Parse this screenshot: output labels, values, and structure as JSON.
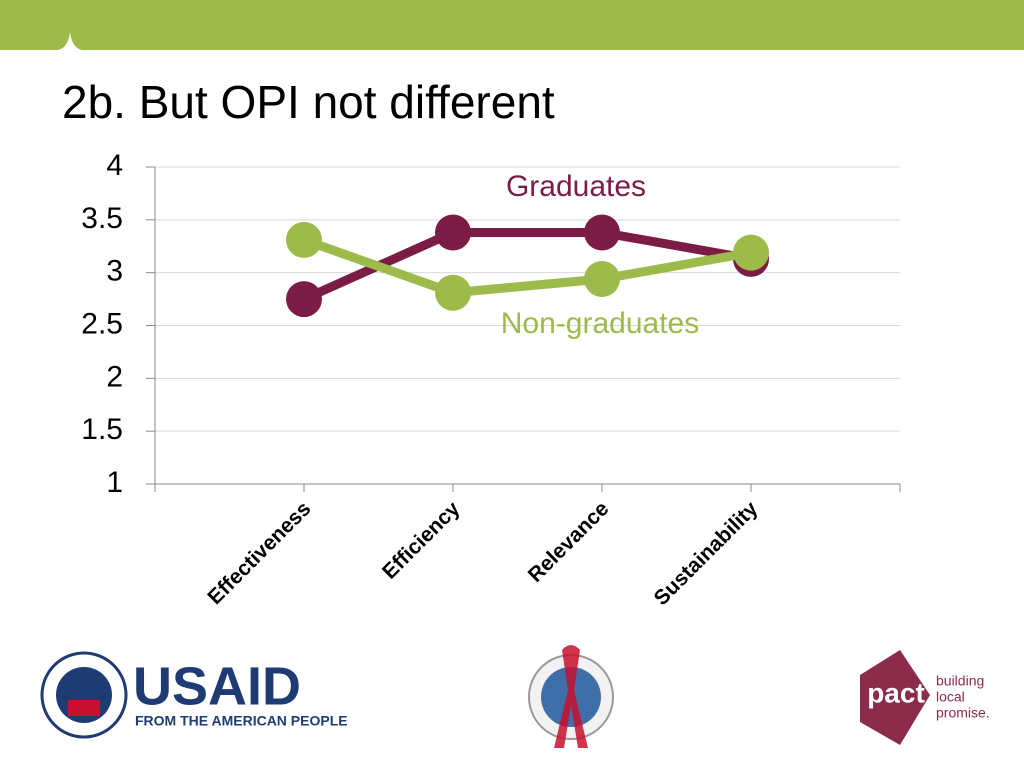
{
  "chart_data": {
    "type": "line",
    "title": "2b. But OPI not different",
    "categories": [
      "Effectiveness",
      "Efficiency",
      "Relevance",
      "Sustainability"
    ],
    "series": [
      {
        "name": "Graduates",
        "color": "#7b1c46",
        "values": [
          2.75,
          3.38,
          3.38,
          3.13
        ]
      },
      {
        "name": "Non-graduates",
        "color": "#9cbb4b",
        "values": [
          3.31,
          2.81,
          2.94,
          3.19
        ]
      }
    ],
    "ylim": [
      1,
      4
    ],
    "yticks": [
      1,
      1.5,
      2,
      2.5,
      3,
      3.5,
      4
    ],
    "grid": true
  },
  "logos": {
    "usaid": "USAID",
    "usaid_tagline": "FROM THE AMERICAN PEOPLE",
    "pact": "pact",
    "pact_tagline": [
      "building",
      "local",
      "promise."
    ]
  }
}
